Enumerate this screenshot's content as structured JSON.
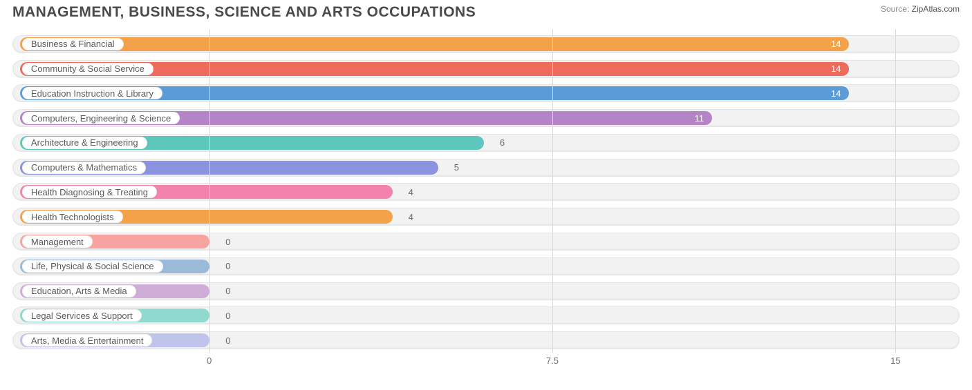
{
  "header": {
    "title": "MANAGEMENT, BUSINESS, SCIENCE AND ARTS OCCUPATIONS",
    "source_label": "Source:",
    "source_value": "ZipAtlas.com"
  },
  "chart": {
    "type": "bar-horizontal",
    "background_color": "#ffffff",
    "row_track_bg": "#f2f2f2",
    "row_track_border": "#e4e4e4",
    "grid_color": "#d9d9d9",
    "pill_bg": "#ffffff",
    "pill_text_color": "#5a5a5a",
    "xlim": [
      -4.3,
      16.4
    ],
    "ticks": [
      {
        "value": 0,
        "label": "0"
      },
      {
        "value": 7.5,
        "label": "7.5"
      },
      {
        "value": 15,
        "label": "15"
      }
    ],
    "label_start_value": -4.15,
    "value_label_offset": 0.35,
    "bar_radius": 12,
    "pill_fontsize": 13,
    "value_fontsize": 13,
    "bars": [
      {
        "label": "Business & Financial",
        "value": 14,
        "color": "#f4a24a",
        "value_in_bar": true
      },
      {
        "label": "Community & Social Service",
        "value": 14,
        "color": "#ee6a5b",
        "value_in_bar": true
      },
      {
        "label": "Education Instruction & Library",
        "value": 14,
        "color": "#5a9bd8",
        "value_in_bar": true
      },
      {
        "label": "Computers, Engineering & Science",
        "value": 11,
        "color": "#b584c6",
        "value_in_bar": true
      },
      {
        "label": "Architecture & Engineering",
        "value": 6,
        "color": "#5ec7bd",
        "value_in_bar": false
      },
      {
        "label": "Computers & Mathematics",
        "value": 5,
        "color": "#8b93e0",
        "value_in_bar": false
      },
      {
        "label": "Health Diagnosing & Treating",
        "value": 4,
        "color": "#f283ad",
        "value_in_bar": false
      },
      {
        "label": "Health Technologists",
        "value": 4,
        "color": "#f4a24a",
        "value_in_bar": false
      },
      {
        "label": "Management",
        "value": 0,
        "color": "#f7a3a0",
        "value_in_bar": false
      },
      {
        "label": "Life, Physical & Social Science",
        "value": 0,
        "color": "#9bb9d8",
        "value_in_bar": false
      },
      {
        "label": "Education, Arts & Media",
        "value": 0,
        "color": "#ceaed6",
        "value_in_bar": false
      },
      {
        "label": "Legal Services & Support",
        "value": 0,
        "color": "#8fd9cf",
        "value_in_bar": false
      },
      {
        "label": "Arts, Media & Entertainment",
        "value": 0,
        "color": "#c0c4ea",
        "value_in_bar": false
      }
    ]
  }
}
